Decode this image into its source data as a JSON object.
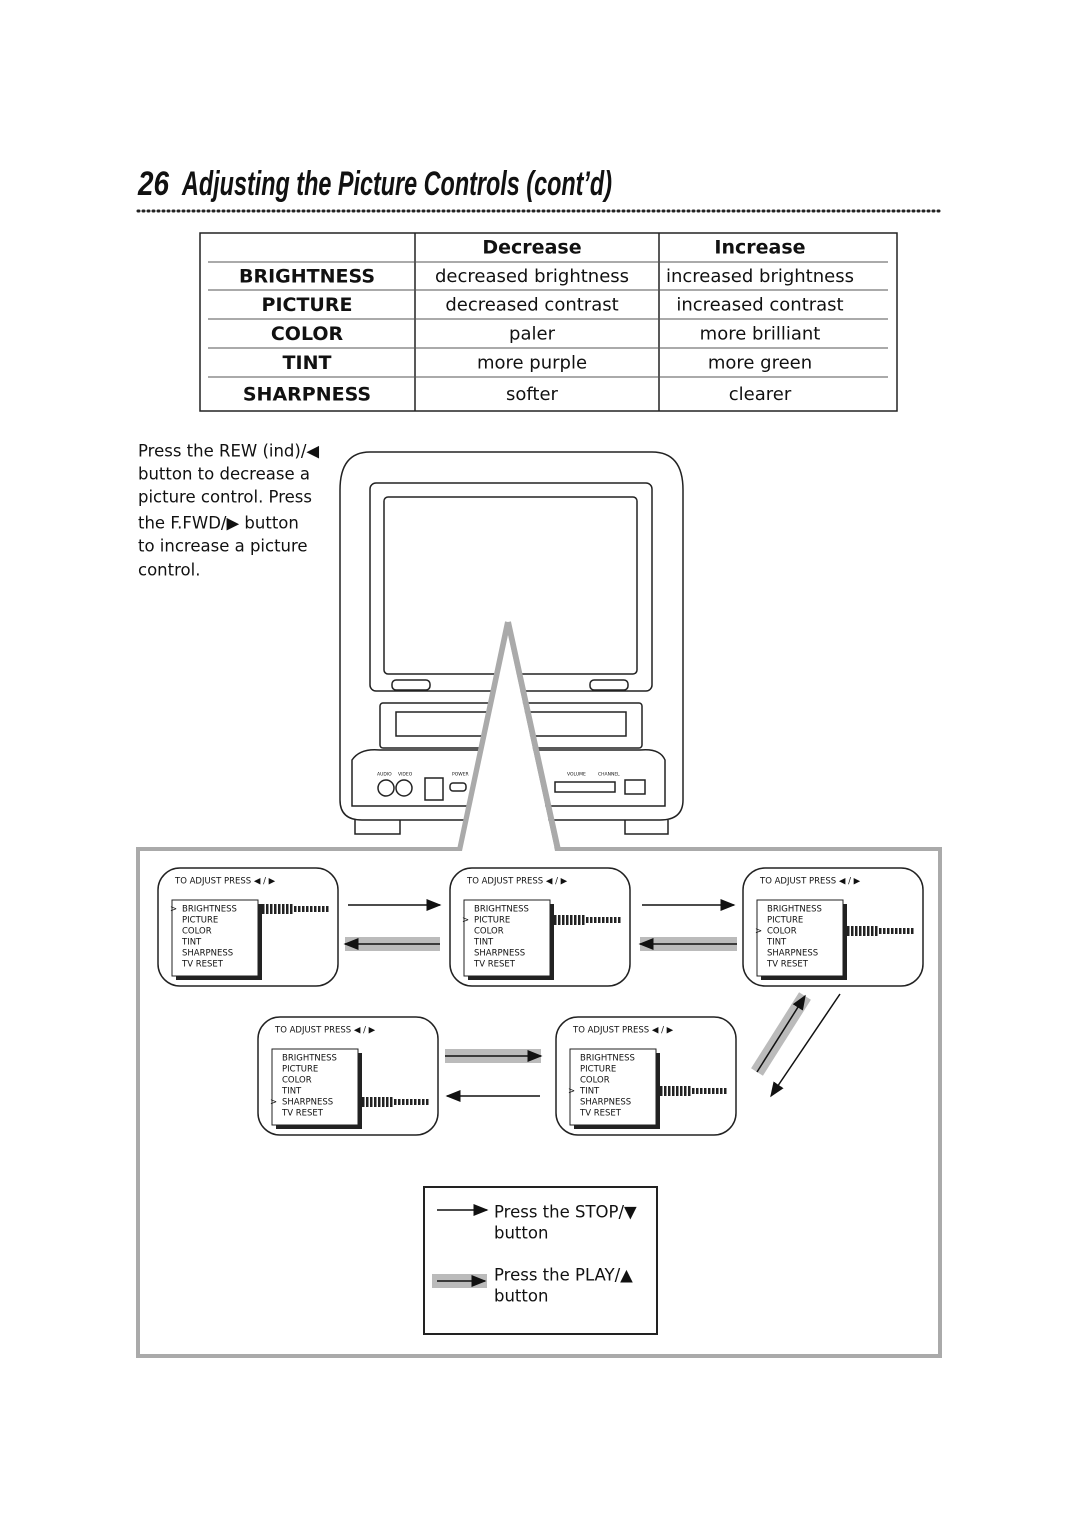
{
  "header": {
    "page_number": "26",
    "title": "Adjusting the Picture Controls (cont’d)"
  },
  "table": {
    "columns": [
      "Decrease",
      "Increase"
    ],
    "rows": [
      [
        "BRIGHTNESS",
        "decreased brightness",
        "increased brightness"
      ],
      [
        "PICTURE",
        "decreased contrast",
        "increased contrast"
      ],
      [
        "COLOR",
        "paler",
        "more brilliant"
      ],
      [
        "TINT",
        "more purple",
        "more green"
      ],
      [
        "SHARPNESS",
        "softer",
        "clearer"
      ]
    ]
  },
  "instructions": [
    "Press the REW (ind)/◀",
    "button to decrease a",
    "picture control. Press",
    "the F.FWD/▶ button",
    "to increase a picture",
    "control."
  ],
  "tv_panel": [
    "AUDIO",
    "VIDEO",
    "POWER",
    "VOLUME",
    "CHANNEL"
  ],
  "menu": {
    "prompt": "TO ADJUST PRESS ◀ / ▶",
    "cursor": ">",
    "items": [
      "BRIGHTNESS",
      "PICTURE",
      "COLOR",
      "TINT",
      "SHARPNESS",
      "TV RESET"
    ]
  },
  "screens": [
    {
      "selected": 0
    },
    {
      "selected": 1
    },
    {
      "selected": 2
    },
    {
      "selected": 4
    },
    {
      "selected": 3
    }
  ],
  "legend": {
    "stop": [
      "Press the STOP/▼",
      "button"
    ],
    "play": [
      "Press the PLAY/▲",
      "button"
    ]
  }
}
